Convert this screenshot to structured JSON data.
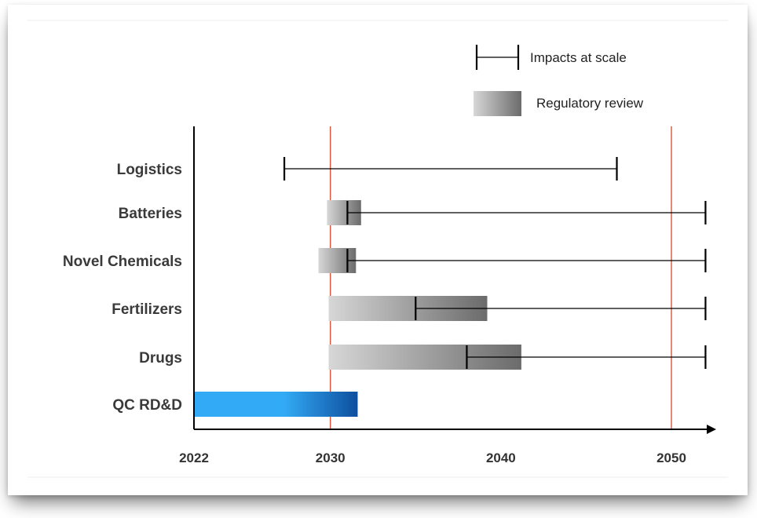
{
  "chart_data": {
    "type": "range",
    "title": "",
    "xlabel": "",
    "ylabel": "",
    "x_ticks": [
      2022,
      2030,
      2040,
      2050
    ],
    "xlim": [
      2022,
      2053
    ],
    "grid": false,
    "reference_lines": [
      2030,
      2050
    ],
    "legend": {
      "placement": "top-right",
      "entries": [
        {
          "name": "Impacts at scale",
          "symbol": "errorbar"
        },
        {
          "name": "Regulatory review",
          "symbol": "gradient-bar"
        }
      ]
    },
    "categories": [
      "Logistics",
      "Batteries",
      "Novel Chemicals",
      "Fertilizers",
      "Drugs",
      "QC RD&D"
    ],
    "rows": [
      {
        "category": "Logistics",
        "impacts": [
          2027.3,
          2046.8
        ],
        "review": null,
        "bar": null
      },
      {
        "category": "Batteries",
        "impacts": [
          2031.0,
          2052.0
        ],
        "review": [
          2029.8,
          2031.8
        ],
        "bar": null
      },
      {
        "category": "Novel Chemicals",
        "impacts": [
          2031.0,
          2052.0
        ],
        "review": [
          2029.3,
          2031.5
        ],
        "bar": null
      },
      {
        "category": "Fertilizers",
        "impacts": [
          2035.0,
          2052.0
        ],
        "review": [
          2029.9,
          2039.2
        ],
        "bar": null
      },
      {
        "category": "Drugs",
        "impacts": [
          2038.0,
          2052.0
        ],
        "review": [
          2029.9,
          2041.2
        ],
        "bar": null
      },
      {
        "category": "QC RD&D",
        "impacts": null,
        "review": null,
        "bar": [
          2022,
          2031.6
        ]
      }
    ],
    "colors": {
      "axis": "#000000",
      "reference_line": "#d9472b",
      "review_start": "#d7d7d7",
      "review_end": "#6b6b6b",
      "rdd_start": "#33aaf5",
      "rdd_end": "#0d4f9e"
    }
  }
}
